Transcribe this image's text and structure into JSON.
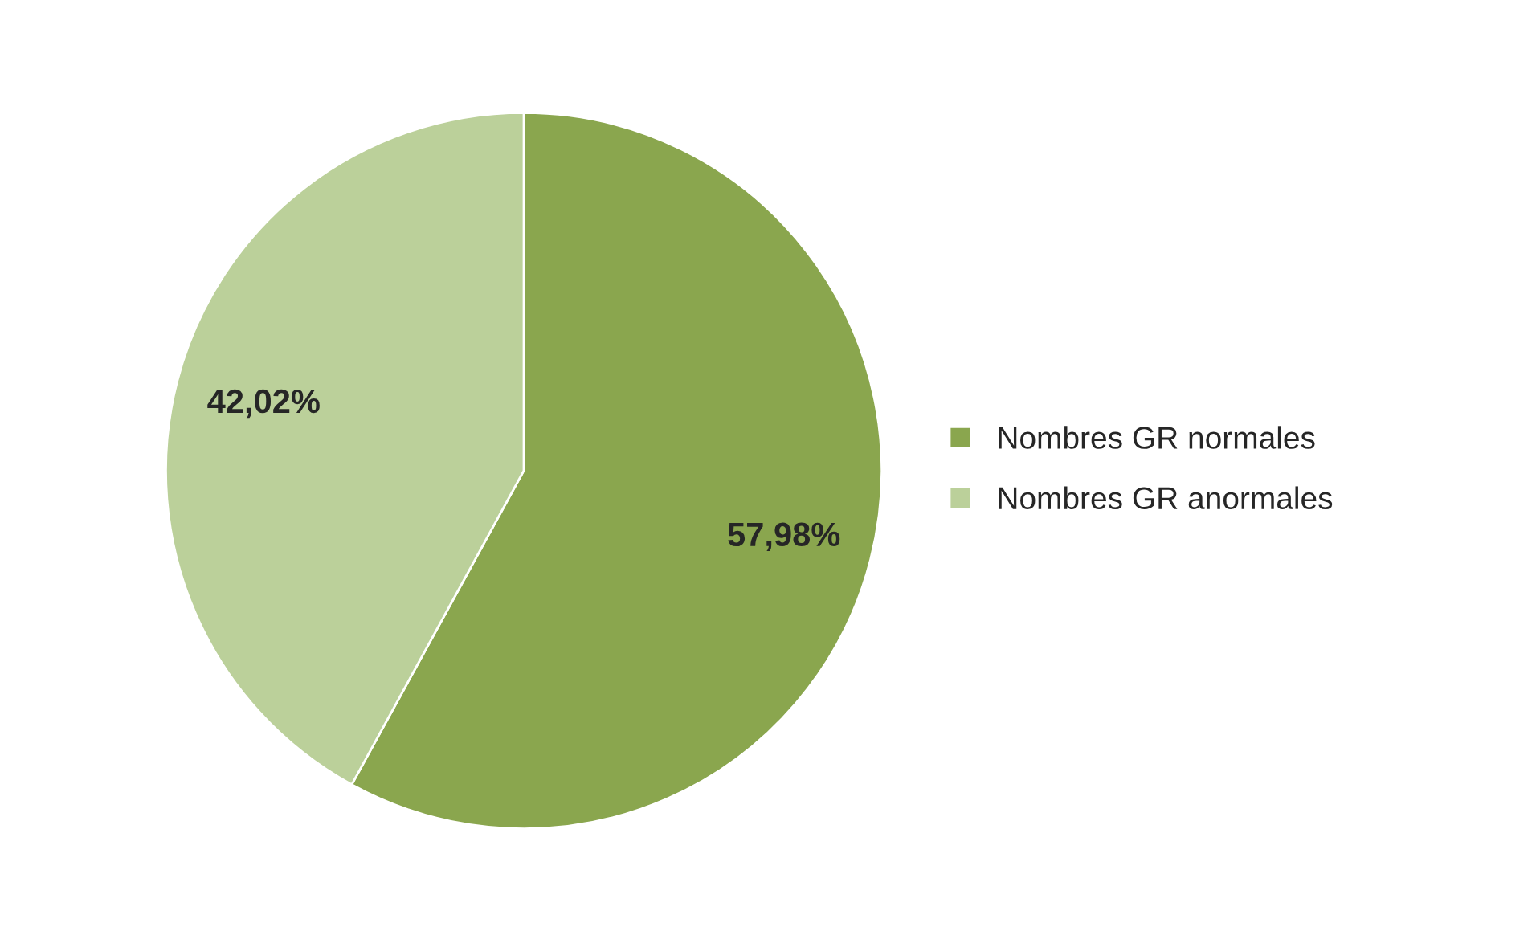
{
  "chart_data": {
    "type": "pie",
    "categories": [
      "Nombres GR normales",
      "Nombres GR anormales"
    ],
    "values": [
      57.98,
      42.02
    ],
    "value_labels": [
      "57,98%",
      "42,02%"
    ],
    "colors": [
      "#8aa64e",
      "#bbd09a"
    ],
    "legend": "right"
  }
}
